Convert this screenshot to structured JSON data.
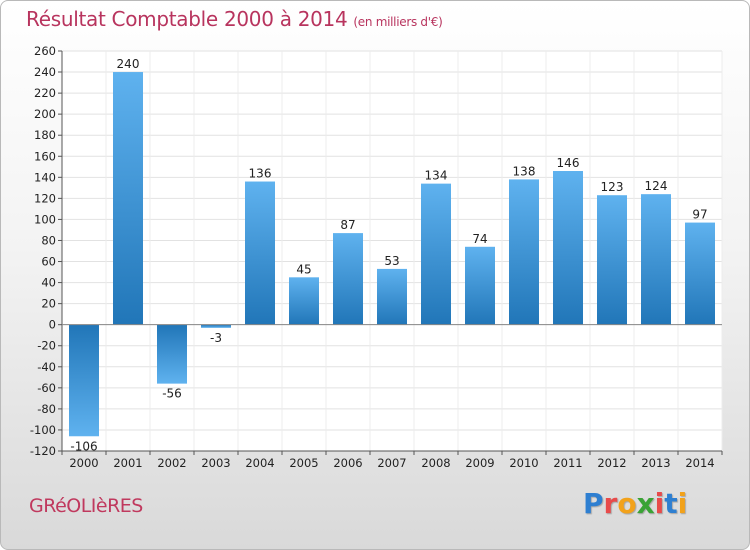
{
  "title": "Résultat Comptable 2000 à 2014",
  "subtitle": "(en milliers d'€)",
  "place": "GRéOLIèRES",
  "logo": {
    "letters": [
      "P",
      "r",
      "o",
      "x",
      "i",
      "t",
      "i"
    ],
    "colors": [
      "#2e7fd1",
      "#e84b4b",
      "#f2a21b",
      "#3aa335",
      "#e84b4b",
      "#2e7fd1",
      "#f2a21b"
    ]
  },
  "colors": {
    "bar_top": "#5fb2ef",
    "bar_bottom": "#2176b8",
    "title": "#b8345e"
  },
  "chart_data": {
    "type": "bar",
    "title": "Résultat Comptable 2000 à 2014",
    "ylabel": "en milliers d'€",
    "categories": [
      "2000",
      "2001",
      "2002",
      "2003",
      "2004",
      "2005",
      "2006",
      "2007",
      "2008",
      "2009",
      "2010",
      "2011",
      "2012",
      "2013",
      "2014"
    ],
    "values": [
      -106,
      240,
      -56,
      -3,
      136,
      45,
      87,
      53,
      134,
      74,
      138,
      146,
      123,
      124,
      97
    ],
    "labels": [
      "-106",
      "240",
      "-56",
      "-3",
      "136",
      "45",
      "87",
      "53",
      "134",
      "74",
      "138",
      "146",
      "123",
      "124",
      "97"
    ],
    "ylim": [
      -120,
      260
    ],
    "yticks": [
      -120,
      -100,
      -80,
      -60,
      -40,
      -20,
      0,
      20,
      40,
      60,
      80,
      100,
      120,
      140,
      160,
      180,
      200,
      220,
      240,
      260
    ],
    "ytick_labels": [
      "-120",
      "-100",
      "-80",
      "-60",
      "-40",
      "-20",
      "0",
      "20",
      "40",
      "60",
      "80",
      "100",
      "120",
      "140",
      "160",
      "180",
      "200",
      "220",
      "240",
      "260"
    ],
    "grid": true
  }
}
